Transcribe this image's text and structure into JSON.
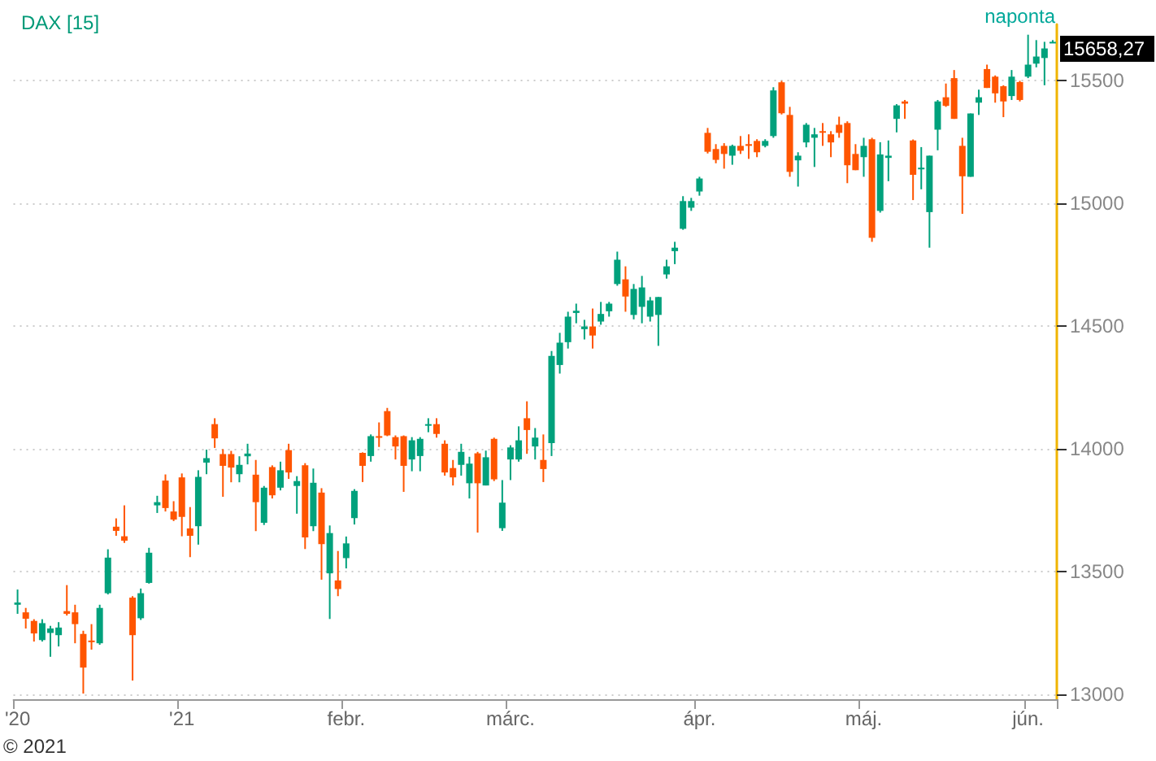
{
  "chart_data": {
    "type": "candlestick",
    "title": "DAX [15]",
    "categories": [
      "'20",
      null,
      null,
      null,
      null,
      null,
      null,
      null,
      null,
      null,
      null,
      null,
      null,
      null,
      null,
      null,
      null,
      null,
      null,
      null,
      "'21",
      null,
      null,
      null,
      null,
      null,
      null,
      null,
      null,
      null,
      null,
      null,
      null,
      null,
      null,
      null,
      null,
      null,
      null,
      null,
      "febr.",
      null,
      null,
      null,
      null,
      null,
      null,
      null,
      null,
      null,
      null,
      null,
      null,
      null,
      null,
      null,
      null,
      null,
      null,
      null,
      "márc.",
      null,
      null,
      null,
      null,
      null,
      null,
      null,
      null,
      null,
      null,
      null,
      null,
      null,
      null,
      null,
      null,
      null,
      null,
      null,
      null,
      null,
      null,
      "ápr.",
      null,
      null,
      null,
      null,
      null,
      null,
      null,
      null,
      null,
      null,
      null,
      null,
      null,
      null,
      null,
      null,
      null,
      null,
      null,
      "máj.",
      null,
      null,
      null,
      null,
      null,
      null,
      null,
      null,
      null,
      null,
      null,
      null,
      null,
      null,
      null,
      null,
      null,
      null,
      null,
      "jún.",
      null,
      null,
      null
    ],
    "ohlc": [
      [
        13365,
        13427,
        13328,
        13374
      ],
      [
        13334,
        13352,
        13268,
        13308
      ],
      [
        13299,
        13306,
        13215,
        13248
      ],
      [
        13221,
        13306,
        13215,
        13290
      ],
      [
        13250,
        13279,
        13153,
        13268
      ],
      [
        13241,
        13294,
        13195,
        13272
      ],
      [
        13339,
        13445,
        13321,
        13328
      ],
      [
        13334,
        13365,
        13208,
        13286
      ],
      [
        13246,
        13259,
        13003,
        13109
      ],
      [
        13219,
        13286,
        13182,
        13215
      ],
      [
        13208,
        13365,
        13202,
        13352
      ],
      [
        13412,
        13591,
        13407,
        13557
      ],
      [
        13683,
        13717,
        13646,
        13666
      ],
      [
        13644,
        13770,
        13617,
        13626
      ],
      [
        13394,
        13400,
        13056,
        13241
      ],
      [
        13310,
        13431,
        13303,
        13412
      ],
      [
        13454,
        13597,
        13451,
        13577
      ],
      [
        13770,
        13809,
        13739,
        13783
      ],
      [
        13871,
        13896,
        13745,
        13759
      ],
      [
        13745,
        13787,
        13706,
        13712
      ],
      [
        13884,
        13900,
        13644,
        13723
      ],
      [
        13676,
        13763,
        13559,
        13646
      ],
      [
        13685,
        13913,
        13610,
        13886
      ],
      [
        13944,
        13997,
        13897,
        13962
      ],
      [
        14101,
        14125,
        14004,
        14043
      ],
      [
        13979,
        13999,
        13805,
        13931
      ],
      [
        13979,
        13992,
        13864,
        13924
      ],
      [
        13897,
        13970,
        13864,
        13935
      ],
      [
        13970,
        14021,
        13937,
        13981
      ],
      [
        13895,
        13955,
        13665,
        13783
      ],
      [
        13699,
        13849,
        13690,
        13842
      ],
      [
        13926,
        13933,
        13798,
        13811
      ],
      [
        13842,
        13948,
        13831,
        13913
      ],
      [
        13995,
        14021,
        13878,
        13904
      ],
      [
        13849,
        13889,
        13736,
        13869
      ],
      [
        13933,
        13942,
        13592,
        13639
      ],
      [
        13685,
        13920,
        13665,
        13862
      ],
      [
        13822,
        13840,
        13467,
        13612
      ],
      [
        13493,
        13688,
        13307,
        13657
      ],
      [
        13464,
        13584,
        13400,
        13429
      ],
      [
        13555,
        13643,
        13513,
        13615
      ],
      [
        13718,
        13836,
        13692,
        13829
      ],
      [
        13984,
        13986,
        13865,
        13931
      ],
      [
        13971,
        14059,
        13948,
        14052
      ],
      [
        14052,
        14108,
        14008,
        14050
      ],
      [
        14154,
        14167,
        14052,
        14055
      ],
      [
        14048,
        14055,
        13957,
        14010
      ],
      [
        14052,
        14055,
        13825,
        13931
      ],
      [
        13957,
        14048,
        13909,
        14035
      ],
      [
        13971,
        14048,
        13909,
        14041
      ],
      [
        14097,
        14125,
        14068,
        14101
      ],
      [
        14101,
        14125,
        14046,
        14061
      ],
      [
        14021,
        14035,
        13891,
        13904
      ],
      [
        13922,
        13955,
        13851,
        13884
      ],
      [
        13935,
        14021,
        13891,
        13988
      ],
      [
        13860,
        13968,
        13798,
        13940
      ],
      [
        13982,
        13988,
        13659,
        13860
      ],
      [
        13851,
        13993,
        13851,
        13966
      ],
      [
        14041,
        14046,
        13869,
        13876
      ],
      [
        13677,
        13873,
        13666,
        13781
      ],
      [
        13957,
        14015,
        13873,
        14006
      ],
      [
        13957,
        14092,
        13948,
        14035
      ],
      [
        14125,
        14194,
        13980,
        14077
      ],
      [
        14010,
        14085,
        13957,
        14046
      ],
      [
        13955,
        14059,
        13865,
        13918
      ],
      [
        14024,
        14399,
        13971,
        14379
      ],
      [
        14342,
        14473,
        14307,
        14433
      ],
      [
        14435,
        14559,
        14409,
        14539
      ],
      [
        14554,
        14592,
        14512,
        14563
      ],
      [
        14488,
        14526,
        14446,
        14499
      ],
      [
        14499,
        14572,
        14409,
        14462
      ],
      [
        14519,
        14599,
        14506,
        14550
      ],
      [
        14561,
        14599,
        14539,
        14592
      ],
      [
        14672,
        14804,
        14665,
        14771
      ],
      [
        14691,
        14744,
        14559,
        14621
      ],
      [
        14546,
        14672,
        14528,
        14652
      ],
      [
        14579,
        14705,
        14512,
        14658
      ],
      [
        14539,
        14619,
        14519,
        14605
      ],
      [
        14546,
        14619,
        14420,
        14619
      ],
      [
        14711,
        14771,
        14694,
        14744
      ],
      [
        14806,
        14844,
        14753,
        14820
      ],
      [
        14897,
        15030,
        14893,
        15010
      ],
      [
        14983,
        15023,
        14970,
        15010
      ],
      [
        15049,
        15109,
        15032,
        15102
      ],
      [
        15288,
        15308,
        15204,
        15211
      ],
      [
        15222,
        15242,
        15164,
        15178
      ],
      [
        15235,
        15246,
        15142,
        15202
      ],
      [
        15195,
        15240,
        15158,
        15235
      ],
      [
        15235,
        15275,
        15202,
        15215
      ],
      [
        15242,
        15282,
        15182,
        15235
      ],
      [
        15255,
        15262,
        15189,
        15209
      ],
      [
        15235,
        15262,
        15229,
        15255
      ],
      [
        15275,
        15474,
        15268,
        15461
      ],
      [
        15494,
        15500,
        15363,
        15368
      ],
      [
        15361,
        15394,
        15109,
        15129
      ],
      [
        15176,
        15209,
        15069,
        15195
      ],
      [
        15249,
        15328,
        15229,
        15321
      ],
      [
        15268,
        15308,
        15149,
        15282
      ],
      [
        15295,
        15328,
        15235,
        15290
      ],
      [
        15282,
        15295,
        15189,
        15249
      ],
      [
        15321,
        15354,
        15268,
        15288
      ],
      [
        15328,
        15335,
        15083,
        15156
      ],
      [
        15202,
        15242,
        15136,
        15136
      ],
      [
        15189,
        15268,
        15109,
        15235
      ],
      [
        15262,
        15268,
        14844,
        14860
      ],
      [
        14970,
        15250,
        14963,
        15200
      ],
      [
        15186,
        15257,
        15091,
        15195
      ],
      [
        15345,
        15405,
        15290,
        15400
      ],
      [
        15416,
        15422,
        15345,
        15407
      ],
      [
        15257,
        15261,
        15014,
        15117
      ],
      [
        15144,
        15230,
        15058,
        15146
      ],
      [
        14965,
        15195,
        14820,
        15195
      ],
      [
        15301,
        15422,
        15217,
        15416
      ],
      [
        15433,
        15489,
        15394,
        15398
      ],
      [
        15511,
        15544,
        15345,
        15345
      ],
      [
        15235,
        15268,
        14958,
        15111
      ],
      [
        15109,
        15367,
        15109,
        15367
      ],
      [
        15411,
        15464,
        15361,
        15433
      ],
      [
        15548,
        15566,
        15471,
        15471
      ],
      [
        15517,
        15522,
        15411,
        15449
      ],
      [
        15478,
        15482,
        15352,
        15416
      ],
      [
        15438,
        15544,
        15422,
        15517
      ],
      [
        15495,
        15500,
        15416,
        15422
      ],
      [
        15517,
        15688,
        15511,
        15566
      ],
      [
        15570,
        15666,
        15555,
        15599
      ],
      [
        15593,
        15659,
        15482,
        15632
      ],
      [
        15659,
        15666,
        15655,
        15659
      ]
    ],
    "colors": [
      "#00a17c",
      "#ff5500",
      "#ff5500",
      "#00a17c",
      "#00a17c",
      "#00a17c",
      "#ff5500",
      "#ff5500",
      "#ff5500",
      "#ff5500",
      "#00a17c",
      "#00a17c",
      "#ff5500",
      "#ff5500",
      "#ff5500",
      "#00a17c",
      "#00a17c",
      "#00a17c",
      "#ff5500",
      "#ff5500",
      "#ff5500",
      "#ff5500",
      "#00a17c",
      "#00a17c",
      "#ff5500",
      "#ff5500",
      "#ff5500",
      "#00a17c",
      "#00a17c",
      "#ff5500",
      "#00a17c",
      "#ff5500",
      "#00a17c",
      "#ff5500",
      "#00a17c",
      "#ff5500",
      "#00a17c",
      "#ff5500",
      "#00a17c",
      "#ff5500",
      "#00a17c",
      "#00a17c",
      "#ff5500",
      "#00a17c",
      "#ff5500",
      "#ff5500",
      "#ff5500",
      "#ff5500",
      "#00a17c",
      "#00a17c",
      "#00a17c",
      "#ff5500",
      "#ff5500",
      "#ff5500",
      "#00a17c",
      "#00a17c",
      "#ff5500",
      "#00a17c",
      "#ff5500",
      "#00a17c",
      "#00a17c",
      "#00a17c",
      "#ff5500",
      "#00a17c",
      "#ff5500",
      "#00a17c",
      "#00a17c",
      "#00a17c",
      "#00a17c",
      "#00a17c",
      "#ff5500",
      "#00a17c",
      "#00a17c",
      "#00a17c",
      "#ff5500",
      "#00a17c",
      "#00a17c",
      "#00a17c",
      "#00a17c",
      "#00a17c",
      "#00a17c",
      "#00a17c",
      "#00a17c",
      "#00a17c",
      "#ff5500",
      "#ff5500",
      "#ff5500",
      "#00a17c",
      "#ff5500",
      "#ff5500",
      "#ff5500",
      "#00a17c",
      "#00a17c",
      "#ff5500",
      "#ff5500",
      "#00a17c",
      "#00a17c",
      "#00a17c",
      "#ff5500",
      "#ff5500",
      "#ff5500",
      "#ff5500",
      "#ff5500",
      "#00a17c",
      "#ff5500",
      "#00a17c",
      "#00a17c",
      "#00a17c",
      "#ff5500",
      "#ff5500",
      "#00a17c",
      "#00a17c",
      "#00a17c",
      "#ff5500",
      "#ff5500",
      "#ff5500",
      "#00a17c",
      "#00a17c",
      "#ff5500",
      "#ff5500",
      "#ff5500",
      "#00a17c",
      "#ff5500",
      "#00a17c",
      "#00a17c",
      "#00a17c",
      "#00a17c"
    ],
    "ylim": [
      12980,
      15730
    ],
    "yticks": [
      13000,
      13500,
      14000,
      14500,
      15000,
      15500
    ],
    "grid": "y",
    "annotations": [
      "naponta",
      "15658,27",
      "© 2021"
    ]
  }
}
